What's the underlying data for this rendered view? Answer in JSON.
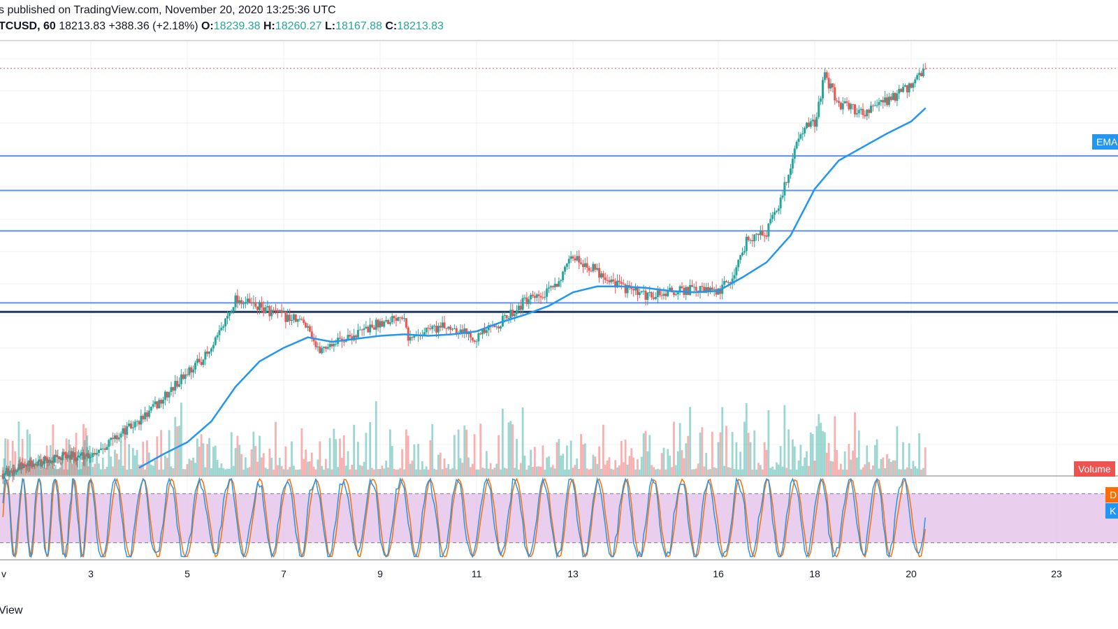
{
  "header": {
    "publish_text": "s published on TradingView.com, November 20, 2020 13:25:36 UTC"
  },
  "ohlc": {
    "symbol": "TCUSD, 60",
    "last": "18213.83",
    "change": "+388.36 (+2.18%)",
    "o_label": "O:",
    "o_value": "18239.38",
    "h_label": "H:",
    "h_value": "18260.27",
    "l_label": "L:",
    "l_value": "18167.88",
    "c_label": "C:",
    "c_value": "18213.83"
  },
  "tags": {
    "ema": "EMA",
    "volume": "Volume",
    "d": "D",
    "k": "K"
  },
  "footer": {
    "brand": "View"
  },
  "colors": {
    "up": "#26a69a",
    "down": "#ef5350",
    "ema": "#2196f3",
    "level": "#5b8ff0",
    "support": "#1e3a5f",
    "stoch_band": "#e1bee7",
    "k_line": "#2196f3",
    "d_line": "#ff6d00",
    "price_line": "#ef5350"
  },
  "chart_data": {
    "type": "candlestick",
    "x_tick_labels": [
      "v",
      "3",
      "5",
      "7",
      "9",
      "11",
      "13",
      "16",
      "18",
      "20",
      "23"
    ],
    "close_path": [
      [
        0,
        15510
      ],
      [
        1,
        15570
      ],
      [
        2,
        15620
      ],
      [
        3,
        15640
      ],
      [
        4,
        15860
      ],
      [
        4.5,
        16010
      ],
      [
        5,
        16190
      ],
      [
        5.5,
        16330
      ],
      [
        6,
        16680
      ],
      [
        6.5,
        16620
      ],
      [
        7,
        16560
      ],
      [
        7.5,
        16510
      ],
      [
        7.7,
        16330
      ],
      [
        8,
        16380
      ],
      [
        8.5,
        16440
      ],
      [
        9,
        16520
      ],
      [
        9.5,
        16580
      ],
      [
        9.6,
        16400
      ],
      [
        10,
        16480
      ],
      [
        10.5,
        16490
      ],
      [
        11,
        16420
      ],
      [
        11.5,
        16520
      ],
      [
        12,
        16660
      ],
      [
        12.4,
        16690
      ],
      [
        12.8,
        16840
      ],
      [
        13,
        16960
      ],
      [
        13.5,
        16860
      ],
      [
        14,
        16760
      ],
      [
        14.5,
        16690
      ],
      [
        15,
        16720
      ],
      [
        15.5,
        16740
      ],
      [
        16,
        16720
      ],
      [
        16.3,
        16820
      ],
      [
        16.6,
        17080
      ],
      [
        17,
        17120
      ],
      [
        17.3,
        17340
      ],
      [
        17.7,
        17800
      ],
      [
        18,
        17850
      ],
      [
        18.2,
        18160
      ],
      [
        18.5,
        17980
      ],
      [
        19,
        17920
      ],
      [
        19.5,
        18000
      ],
      [
        20,
        18090
      ],
      [
        20.3,
        18214
      ]
    ],
    "ema_path": [
      [
        4.0,
        15550
      ],
      [
        4.5,
        15640
      ],
      [
        5,
        15720
      ],
      [
        5.5,
        15860
      ],
      [
        6,
        16090
      ],
      [
        6.5,
        16260
      ],
      [
        7,
        16350
      ],
      [
        7.5,
        16420
      ],
      [
        8,
        16390
      ],
      [
        8.5,
        16410
      ],
      [
        9,
        16430
      ],
      [
        9.5,
        16440
      ],
      [
        10,
        16430
      ],
      [
        10.5,
        16440
      ],
      [
        11,
        16460
      ],
      [
        11.5,
        16520
      ],
      [
        12,
        16570
      ],
      [
        12.5,
        16630
      ],
      [
        13,
        16720
      ],
      [
        13.5,
        16760
      ],
      [
        14,
        16760
      ],
      [
        14.5,
        16750
      ],
      [
        15,
        16730
      ],
      [
        15.5,
        16720
      ],
      [
        16,
        16730
      ],
      [
        16.5,
        16820
      ],
      [
        17,
        16920
      ],
      [
        17.5,
        17100
      ],
      [
        18,
        17410
      ],
      [
        18.5,
        17600
      ],
      [
        19,
        17690
      ],
      [
        19.5,
        17780
      ],
      [
        20,
        17860
      ],
      [
        20.3,
        17950
      ]
    ],
    "horizontal_levels": [
      17630,
      17400,
      17130,
      16650,
      16590
    ],
    "support_level": 16590,
    "last_price": 18214,
    "y_range": [
      15500,
      18400
    ],
    "x_range": [
      -0.1,
      24.3
    ],
    "volume_baseline_label": "Volume",
    "stochastic": {
      "upper_band": 80,
      "lower_band": 20,
      "range": [
        0,
        100
      ]
    },
    "legend": [
      "EMA",
      "Volume",
      "D",
      "K"
    ]
  }
}
